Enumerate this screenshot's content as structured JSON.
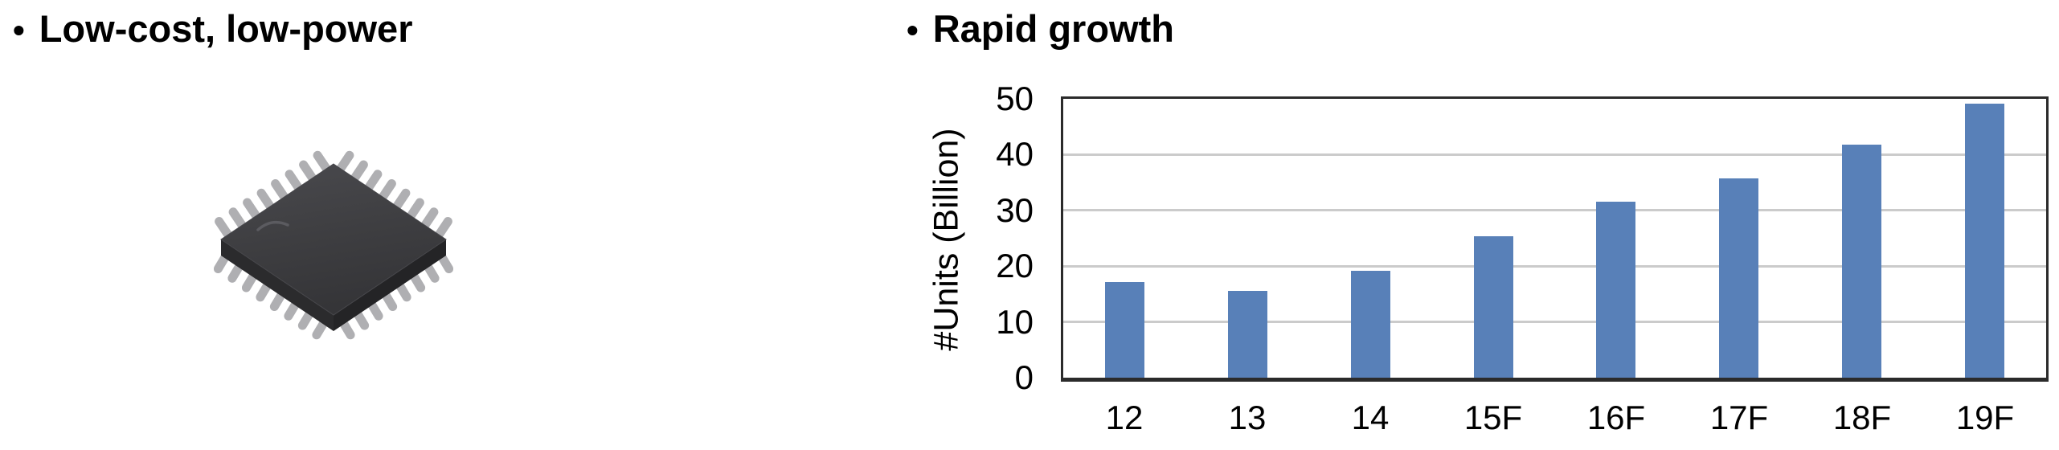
{
  "bullet_points": {
    "left": {
      "marker": "•",
      "label": "Low-cost, low-power"
    },
    "right": {
      "marker": "•",
      "label": "Rapid growth"
    }
  },
  "illustration": {
    "name": "microcontroller-qfp-chip",
    "body_color": "#3E3E41",
    "body_highlight": "#48484C",
    "side_left_color": "#2B2B2D",
    "side_right_color": "#242426",
    "pin_color": "#AFAFB2",
    "dimple_color": "#5B5B60"
  },
  "chart_data": {
    "type": "bar",
    "title": "",
    "categories": [
      "12",
      "13",
      "14",
      "15F",
      "16F",
      "17F",
      "18F",
      "19F"
    ],
    "values": [
      17.2,
      15.6,
      19.2,
      25.4,
      31.5,
      35.8,
      41.8,
      49.2
    ],
    "xlabel": "",
    "ylabel": "#Units (Billion)",
    "ylim": [
      0,
      50
    ],
    "yticks": [
      0,
      10,
      20,
      30,
      40,
      50
    ],
    "grid": true,
    "legend": false,
    "bar_color": "#5880B8",
    "gridline_color": "#CBCBCB",
    "axis_color": "#2B2B2B"
  }
}
